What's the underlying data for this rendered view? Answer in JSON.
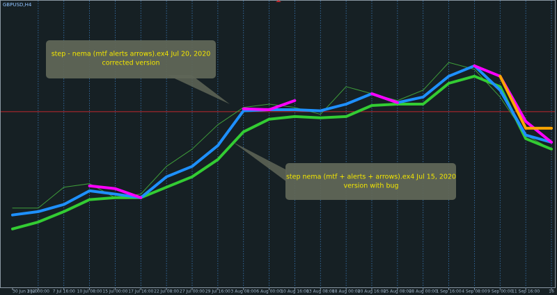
{
  "chart_data": {
    "type": "line",
    "title": "GBPUSD,H4",
    "categories": [
      "30 Jun 2020",
      "3 Jul 00:00",
      "7 Jul 16:00",
      "10 Jul 08:00",
      "15 Jul 00:00",
      "17 Jul 16:00",
      "22 Jul 08:00",
      "27 Jul 00:00",
      "29 Jul 16:00",
      "3 Aug 08:00",
      "6 Aug 00:00",
      "10 Aug 16:00",
      "13 Aug 08:00",
      "18 Aug 00:00",
      "20 Aug 16:00",
      "25 Aug 08:00",
      "28 Aug 00:00",
      "1 Sep 16:00",
      "4 Sep 08:00",
      "9 Sep 00:00",
      "11 Sep 16:00",
      "16"
    ],
    "series": [
      {
        "color": "#3f9e3a",
        "width": 1,
        "values": [
          1.2561,
          1.2561,
          1.2655,
          1.2671,
          1.2608,
          1.2624,
          1.2749,
          1.2827,
          1.2937,
          1.3015,
          1.303,
          1.3015,
          1.2984,
          1.3109,
          1.3077,
          1.3046,
          1.3093,
          1.3218,
          1.3187,
          1.3062,
          1.289,
          1.2827
        ]
      },
      {
        "color": "#33cc33",
        "width": 4,
        "values": [
          1.2467,
          1.2498,
          1.2545,
          1.2599,
          1.2608,
          1.2608,
          1.2655,
          1.2702,
          1.278,
          1.2905,
          1.2962,
          1.2974,
          1.2968,
          1.2974,
          1.3024,
          1.303,
          1.303,
          1.3124,
          1.3156,
          1.3109,
          1.2874,
          1.2827
        ]
      },
      {
        "color": "#1e90ff",
        "width": 4,
        "values": [
          1.253,
          1.2545,
          1.2577,
          1.2639,
          1.2624,
          1.2608,
          1.2702,
          1.2749,
          1.2843,
          1.3,
          1.3005,
          1.3005,
          1.3,
          1.303,
          1.3077,
          1.3037,
          1.3062,
          1.3156,
          1.3203,
          1.3093,
          1.289,
          1.2858
        ]
      },
      {
        "color": "#ff00ff",
        "width": 4,
        "values": [
          null,
          null,
          null,
          1.2661,
          1.2649,
          1.2608,
          null,
          null,
          null,
          1.3009,
          1.3005,
          1.3046,
          null,
          null,
          1.3077,
          1.3037,
          null,
          null,
          1.3203,
          1.3156,
          1.2952,
          1.2858
        ]
      },
      {
        "color": "#ffa500",
        "width": 4,
        "values": [
          null,
          null,
          null,
          null,
          null,
          null,
          null,
          null,
          null,
          null,
          null,
          null,
          null,
          null,
          null,
          null,
          null,
          null,
          null,
          1.3156,
          1.2921,
          1.2921
        ]
      }
    ],
    "ylim": [
      1.22,
      1.35
    ],
    "hline": 1.2996,
    "hline_color": "#c0282d",
    "annotations": [
      {
        "lines": [
          "step - nema (mtf alerts arrows).ex4 Jul 20, 2020",
          "corrected version"
        ]
      },
      {
        "lines": [
          "step nema (mtf + alerts + arrows).ex4 Jul 15, 2020",
          "version with bug"
        ]
      }
    ]
  }
}
